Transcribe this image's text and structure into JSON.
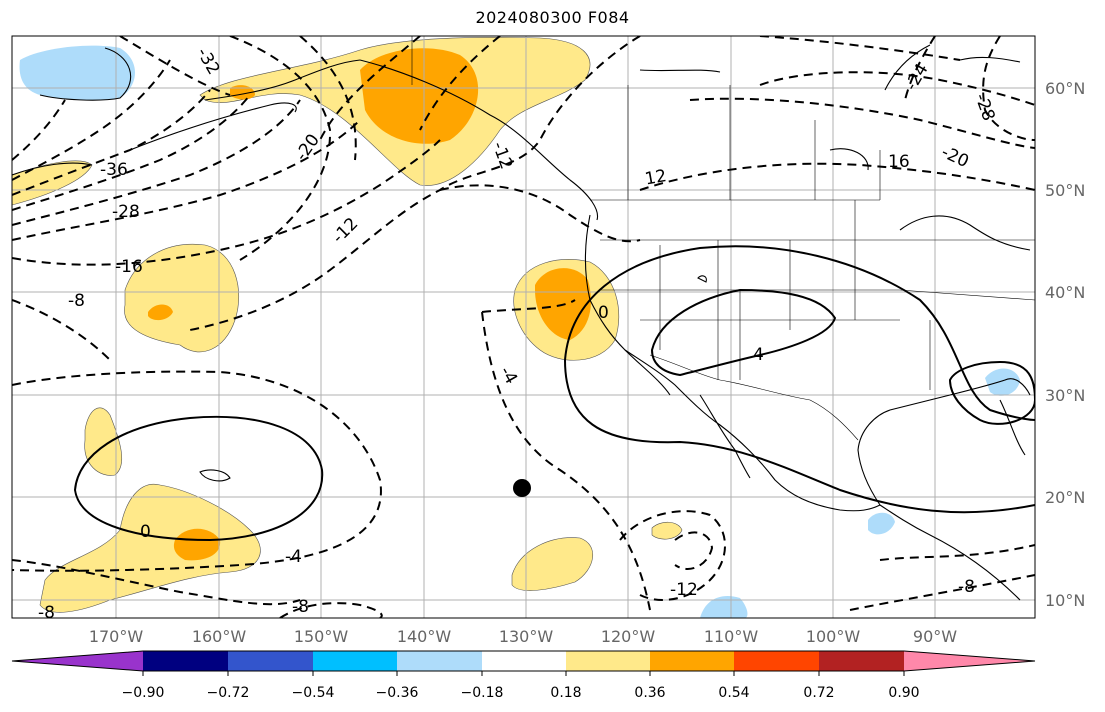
{
  "title": "2024080300 F084",
  "map": {
    "lat_labels": [
      "60°N",
      "50°N",
      "40°N",
      "30°N",
      "20°N",
      "10°N"
    ],
    "lon_labels": [
      "170°W",
      "160°W",
      "150°W",
      "140°W",
      "130°W",
      "120°W",
      "110°W",
      "100°W",
      "90°W"
    ],
    "contour_labels": [
      "-32",
      "-36",
      "-28",
      "-20",
      "-16",
      "-12",
      "-8",
      "-4",
      "-4",
      "-8",
      "-8",
      "0",
      "0",
      "4",
      "-12",
      "-12",
      "12",
      "16",
      "-20",
      "-24",
      "-28",
      "-8"
    ],
    "colors": {
      "shade_light_yellow": "#ffe98a",
      "shade_orange": "#ffa500",
      "shade_light_blue": "#aedcfa"
    }
  },
  "colorbar": {
    "ticks": [
      "−0.90",
      "−0.72",
      "−0.54",
      "−0.36",
      "−0.18",
      "0.18",
      "0.36",
      "0.54",
      "0.72",
      "0.90"
    ],
    "colors": [
      "#9933cc",
      "#000080",
      "#3355cc",
      "#00bfff",
      "#aedcfa",
      "#ffffff",
      "#ffe98a",
      "#ffa500",
      "#ff4500",
      "#b22222",
      "#ff88aa"
    ]
  }
}
